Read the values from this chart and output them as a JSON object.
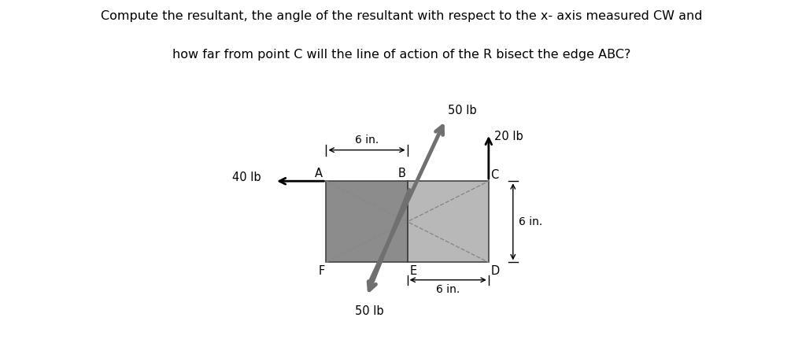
{
  "title_line1": "Compute the resultant, the angle of the resultant with respect to the x- axis measured CW and",
  "title_line2": "how far from point C will the line of action of the R bisect the edge ABC?",
  "panel_bg": "#e0e0e0",
  "fig_bg": "#ffffff",
  "rect_left_color": "#8c8c8c",
  "rect_right_color": "#b8b8b8",
  "arrow_50_color": "#707070",
  "points": {
    "A": [
      0.0,
      0.0
    ],
    "B": [
      6.0,
      0.0
    ],
    "C": [
      12.0,
      0.0
    ],
    "F": [
      0.0,
      -6.0
    ],
    "E": [
      6.0,
      -6.0
    ],
    "D": [
      12.0,
      -6.0
    ]
  },
  "xlim": [
    -6,
    18
  ],
  "ylim": [
    -12,
    8
  ]
}
